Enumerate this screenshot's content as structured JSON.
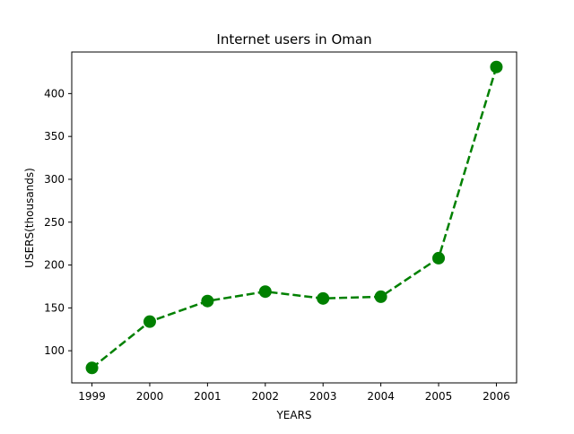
{
  "chart_data": {
    "type": "line",
    "title": "Internet users in Oman",
    "xlabel": "YEARS",
    "ylabel": "USERS(thousands)",
    "x": [
      1999,
      2000,
      2001,
      2002,
      2003,
      2004,
      2005,
      2006
    ],
    "xticks": [
      "1999",
      "2000",
      "2001",
      "2002",
      "2003",
      "2004",
      "2005",
      "2006"
    ],
    "yticks": [
      "100",
      "150",
      "200",
      "250",
      "300",
      "350",
      "400"
    ],
    "series": [
      {
        "name": "",
        "values": [
          80,
          134,
          158,
          169,
          161,
          163,
          208,
          431
        ],
        "color": "#008000",
        "line_style": "dashed",
        "marker": "circle"
      }
    ],
    "xlim": [
      1998.65,
      2006.35
    ],
    "ylim": [
      62.5,
      448.5
    ],
    "grid": false,
    "legend": "none"
  }
}
